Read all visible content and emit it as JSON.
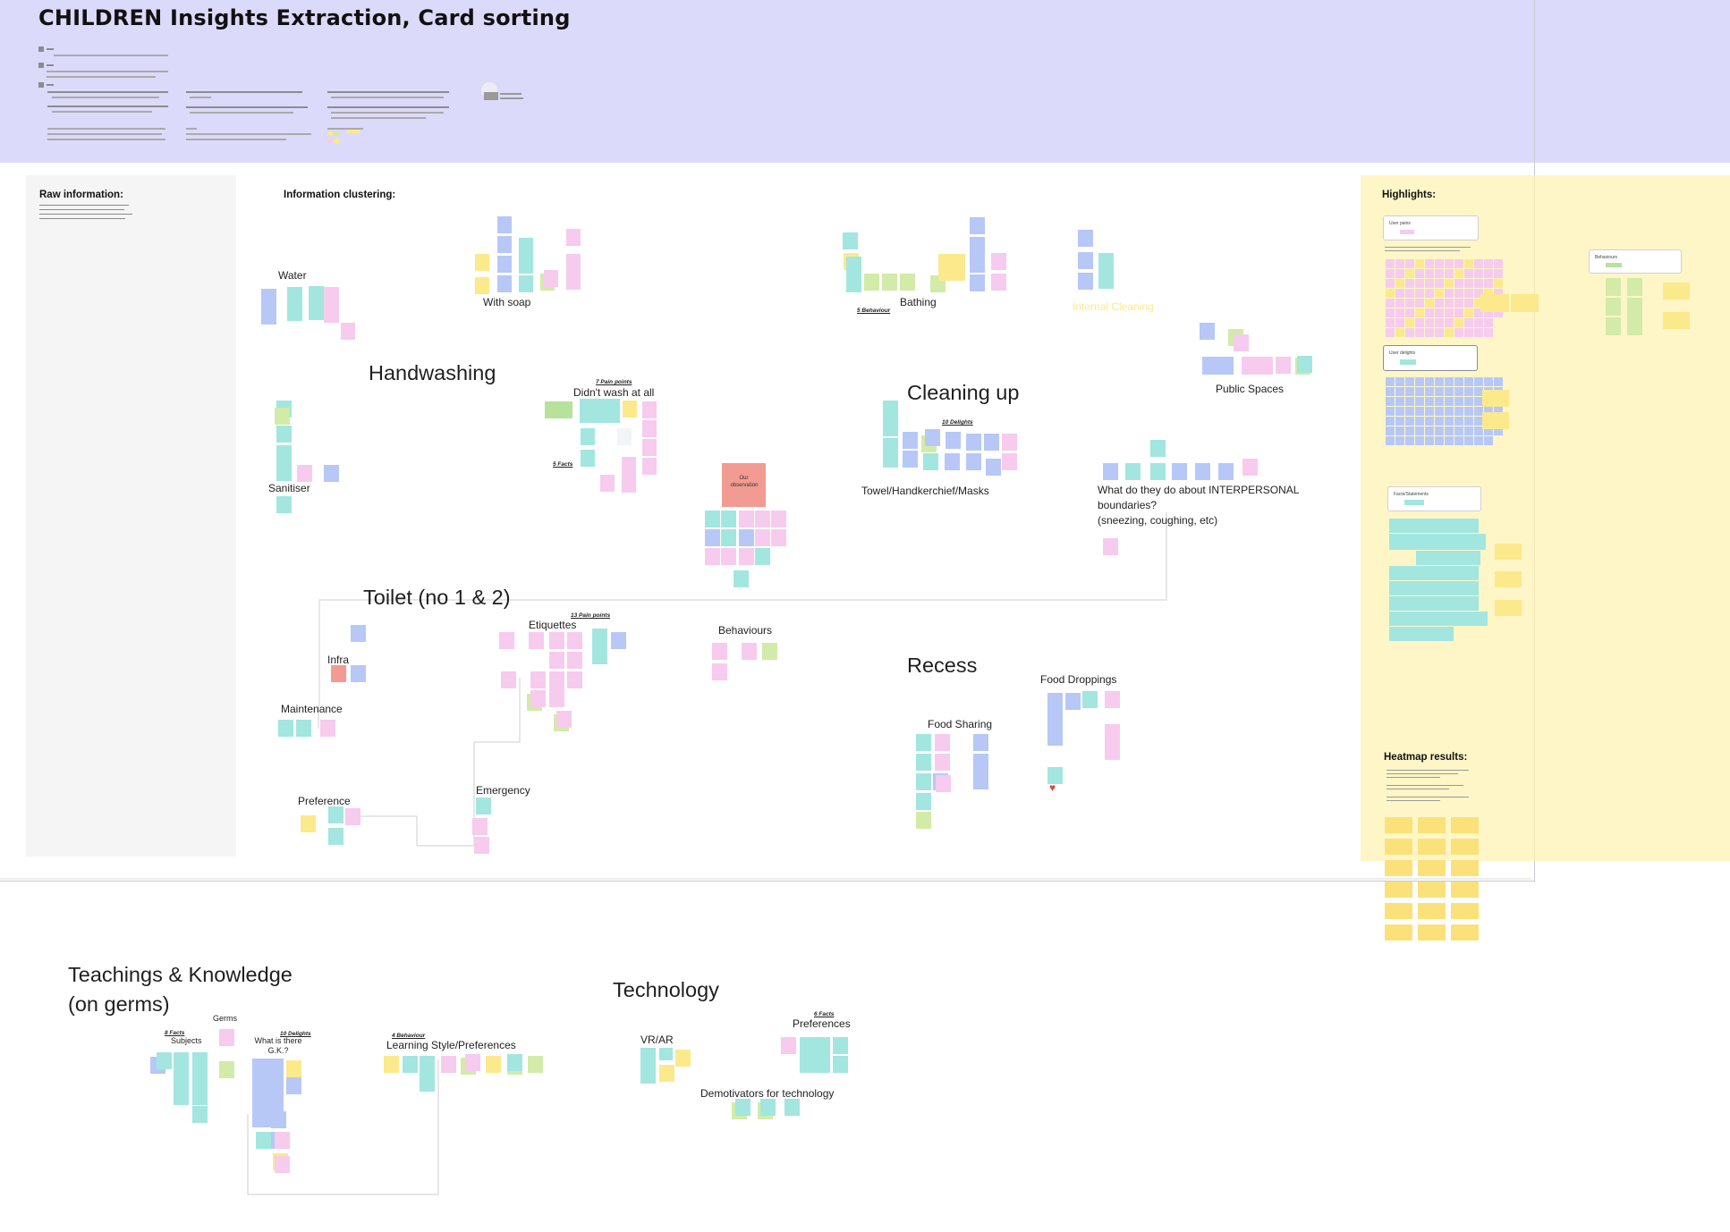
{
  "board": {
    "title": "CHILDREN Insights Extraction, Card sorting"
  },
  "panels": {
    "raw_title": "Raw information:",
    "clustering_title": "Information clustering:",
    "highlights_title": "Highlights:",
    "heatmap_title": "Heatmap results:",
    "highlight_cards": [
      "User pains",
      "User delights",
      "Facts/Statements",
      "Behaviours"
    ]
  },
  "clusters": {
    "handwashing": {
      "title": "Handwashing",
      "labels": {
        "water": "Water",
        "soap": "With soap",
        "sanitiser": "Sanitiser",
        "no_wash": "Didn't wash at all"
      },
      "counts": {
        "pain": "7 Pain points",
        "facts": "5 Facts"
      }
    },
    "cleaning": {
      "title": "Cleaning up",
      "labels": {
        "bathing": "Bathing",
        "internal": "Internal Cleaning",
        "public": "Public Spaces",
        "towel": "Towel/Handkerchief/Masks"
      },
      "counts": {
        "behaviour": "5 Behaviour",
        "delights": "10 Delights"
      },
      "interpersonal": [
        "What do they do about INTERPERSONAL",
        "boundaries?",
        "(sneezing, coughing, etc)"
      ]
    },
    "observation": "Our observation",
    "toilet": {
      "title": "Toilet (no 1 & 2)",
      "labels": {
        "infra": "Infra",
        "maintenance": "Maintenance",
        "etiquettes": "Etiquettes",
        "behaviours": "Behaviours",
        "preference": "Preference",
        "emergency": "Emergency"
      },
      "counts": {
        "pain": "13 Pain points"
      }
    },
    "recess": {
      "title": "Recess",
      "labels": {
        "food_sharing": "Food Sharing",
        "food_droppings": "Food Droppings"
      }
    },
    "teachings": {
      "title": "Teachings & Knowledge",
      "subtitle": "(on germs)",
      "labels": {
        "germs": "Germs",
        "subjects": "Subjects",
        "gk1": "What is there",
        "gk2": "G.K.?",
        "learning": "Learning Style/Preferences"
      },
      "counts": {
        "facts": "8 Facts",
        "delights": "10 Delights",
        "behaviour": "4 Behaviour"
      }
    },
    "technology": {
      "title": "Technology",
      "labels": {
        "vrar": "VR/AR",
        "preferences": "Preferences",
        "demotivators": "Demotivators for technology"
      },
      "counts": {
        "facts": "6 Facts"
      }
    }
  },
  "colors": {
    "header_bg": "#dcdafa",
    "highlights_bg": "#fdf3b4",
    "sticky_blue": "#b7c8f7",
    "sticky_teal": "#a2e6df",
    "sticky_pink": "#f6cbee",
    "sticky_yellow": "#fbe98c",
    "sticky_green": "#d3eba8",
    "sticky_red": "#f29b92"
  }
}
